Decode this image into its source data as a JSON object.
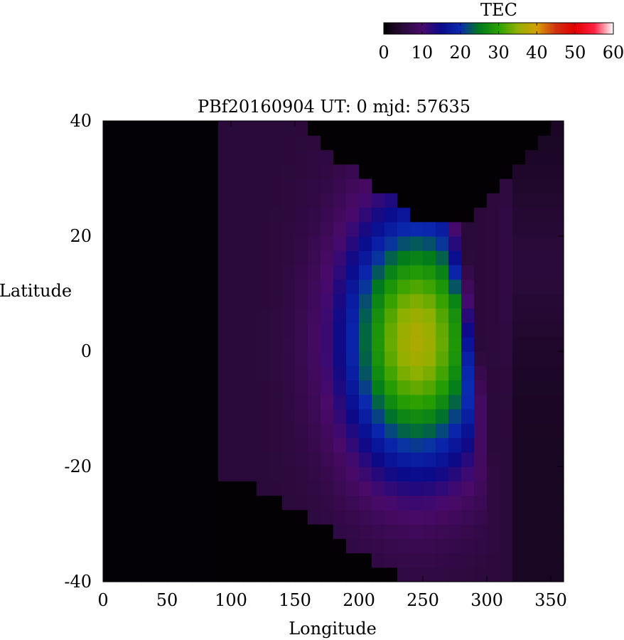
{
  "chart_data": {
    "type": "heatmap",
    "title": "PBf20160904  UT: 0  mjd: 57635",
    "xlabel": "Longitude",
    "ylabel": "Latitude",
    "xlim": [
      0,
      360
    ],
    "ylim": [
      -40,
      40
    ],
    "x_ticks": [
      "0",
      "50",
      "100",
      "150",
      "200",
      "250",
      "300",
      "350"
    ],
    "y_ticks": [
      "40",
      "20",
      "0",
      "-20",
      "-40"
    ],
    "colorbar": {
      "label": "TEC",
      "range": [
        0,
        60
      ],
      "ticks": [
        "0",
        "10",
        "20",
        "30",
        "40",
        "50",
        "60"
      ],
      "stops": [
        {
          "v": 0,
          "color": "#000000"
        },
        {
          "v": 5,
          "color": "#2a0a3a"
        },
        {
          "v": 10,
          "color": "#4a0a6a"
        },
        {
          "v": 15,
          "color": "#0a0a8a"
        },
        {
          "v": 20,
          "color": "#0a2ab0"
        },
        {
          "v": 25,
          "color": "#007a1e"
        },
        {
          "v": 30,
          "color": "#2aa000"
        },
        {
          "v": 35,
          "color": "#90b000"
        },
        {
          "v": 40,
          "color": "#d4a000"
        },
        {
          "v": 45,
          "color": "#d03010"
        },
        {
          "v": 50,
          "color": "#e00000"
        },
        {
          "v": 55,
          "color": "#ff2040"
        },
        {
          "v": 60,
          "color": "#ffffff"
        }
      ]
    },
    "grid": false,
    "grid_res": {
      "dx": 10,
      "dy": 2.5
    }
  }
}
